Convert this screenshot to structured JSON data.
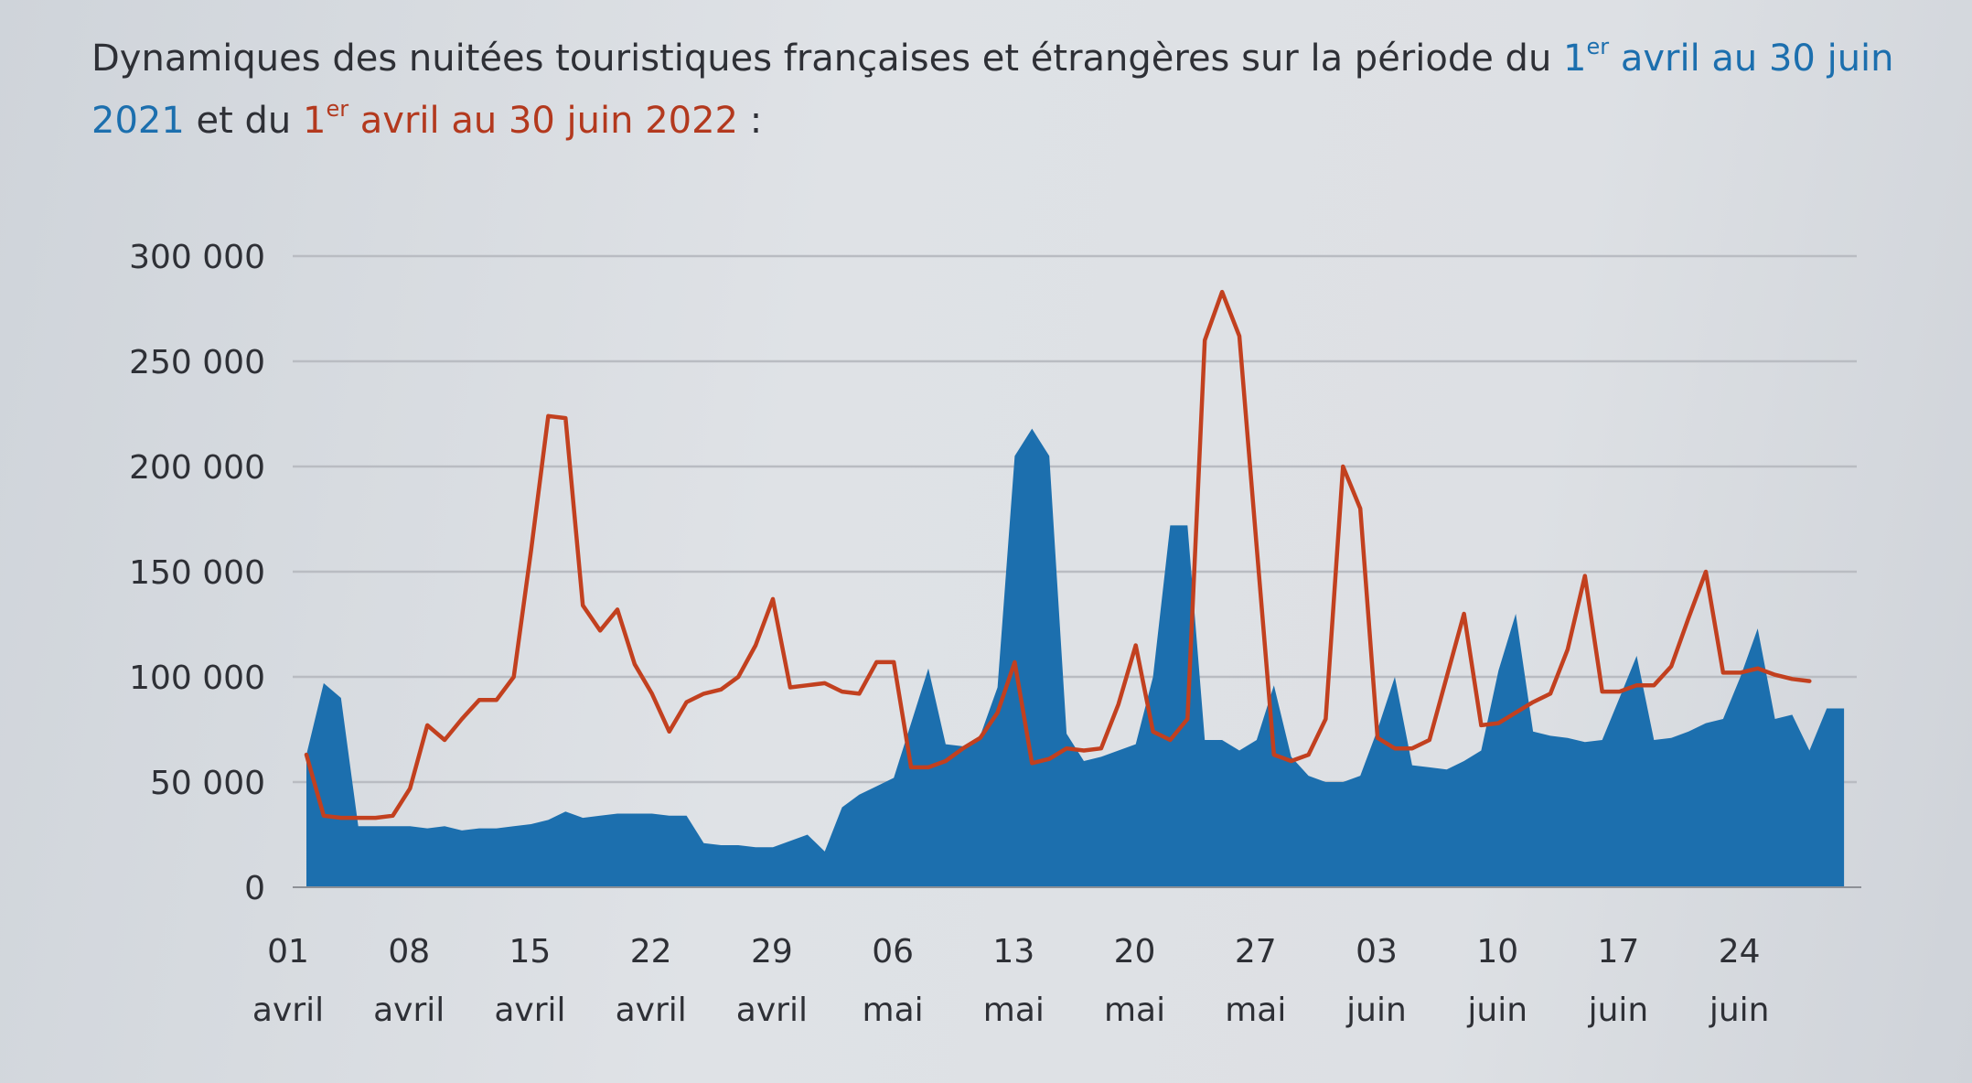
{
  "title": {
    "part1": "Dynamiques des nuitées touristiques françaises et étrangères sur la période du ",
    "part2_pre": "1",
    "part2_sup": "er",
    "part2_post": " avril au 30 juin 2021",
    "part3": " et du ",
    "part4_pre": "1",
    "part4_sup": "er",
    "part4_post": " avril au 30 juin 2022",
    "part5": " :"
  },
  "colors": {
    "series_2021": "#1c6fae",
    "series_2022": "#c2401f",
    "grid": "#b9bcc2",
    "axis": "#8d9096"
  },
  "chart_data": {
    "type": "area",
    "ylim": [
      0,
      300000
    ],
    "yticks": [
      {
        "value": 0,
        "label": "0"
      },
      {
        "value": 50000,
        "label": "50 000"
      },
      {
        "value": 100000,
        "label": "100 000"
      },
      {
        "value": 150000,
        "label": "150 000"
      },
      {
        "value": 200000,
        "label": "200 000"
      },
      {
        "value": 250000,
        "label": "250 000"
      },
      {
        "value": 300000,
        "label": "300 000"
      }
    ],
    "xticks": [
      {
        "day": 1,
        "top": "01",
        "bottom": "avril"
      },
      {
        "day": 8,
        "top": "08",
        "bottom": "avril"
      },
      {
        "day": 15,
        "top": "15",
        "bottom": "avril"
      },
      {
        "day": 22,
        "top": "22",
        "bottom": "avril"
      },
      {
        "day": 29,
        "top": "29",
        "bottom": "avril"
      },
      {
        "day": 36,
        "top": "06",
        "bottom": "mai"
      },
      {
        "day": 43,
        "top": "13",
        "bottom": "mai"
      },
      {
        "day": 50,
        "top": "20",
        "bottom": "mai"
      },
      {
        "day": 57,
        "top": "27",
        "bottom": "mai"
      },
      {
        "day": 64,
        "top": "03",
        "bottom": "juin"
      },
      {
        "day": 71,
        "top": "10",
        "bottom": "juin"
      },
      {
        "day": 78,
        "top": "17",
        "bottom": "juin"
      },
      {
        "day": 85,
        "top": "24",
        "bottom": "juin"
      }
    ],
    "x_day_range": [
      1,
      91
    ],
    "series": [
      {
        "name": "2021",
        "kind": "area",
        "points": [
          [
            1,
            63000
          ],
          [
            2,
            97000
          ],
          [
            3,
            90000
          ],
          [
            4,
            29000
          ],
          [
            5,
            29000
          ],
          [
            6,
            29000
          ],
          [
            7,
            29000
          ],
          [
            8,
            28000
          ],
          [
            9,
            29000
          ],
          [
            10,
            27000
          ],
          [
            11,
            28000
          ],
          [
            12,
            28000
          ],
          [
            13,
            29000
          ],
          [
            14,
            30000
          ],
          [
            15,
            32000
          ],
          [
            16,
            36000
          ],
          [
            17,
            33000
          ],
          [
            18,
            34000
          ],
          [
            19,
            35000
          ],
          [
            20,
            35000
          ],
          [
            21,
            35000
          ],
          [
            22,
            34000
          ],
          [
            23,
            34000
          ],
          [
            24,
            21000
          ],
          [
            25,
            20000
          ],
          [
            26,
            20000
          ],
          [
            27,
            19000
          ],
          [
            28,
            19000
          ],
          [
            29,
            22000
          ],
          [
            30,
            25000
          ],
          [
            31,
            17000
          ],
          [
            32,
            38000
          ],
          [
            33,
            44000
          ],
          [
            34,
            48000
          ],
          [
            35,
            52000
          ],
          [
            36,
            78000
          ],
          [
            37,
            104000
          ],
          [
            38,
            68000
          ],
          [
            39,
            67000
          ],
          [
            40,
            72000
          ],
          [
            41,
            95000
          ],
          [
            42,
            205000
          ],
          [
            43,
            218000
          ],
          [
            44,
            205000
          ],
          [
            45,
            73000
          ],
          [
            46,
            60000
          ],
          [
            47,
            62000
          ],
          [
            48,
            65000
          ],
          [
            49,
            68000
          ],
          [
            50,
            100000
          ],
          [
            51,
            172000
          ],
          [
            52,
            172000
          ],
          [
            53,
            70000
          ],
          [
            54,
            70000
          ],
          [
            55,
            65000
          ],
          [
            56,
            70000
          ],
          [
            57,
            96000
          ],
          [
            58,
            62000
          ],
          [
            59,
            53000
          ],
          [
            60,
            50000
          ],
          [
            61,
            50000
          ],
          [
            62,
            53000
          ],
          [
            63,
            75000
          ],
          [
            64,
            100000
          ],
          [
            65,
            58000
          ],
          [
            66,
            57000
          ],
          [
            67,
            56000
          ],
          [
            68,
            60000
          ],
          [
            69,
            65000
          ],
          [
            70,
            103000
          ],
          [
            71,
            130000
          ],
          [
            72,
            74000
          ],
          [
            73,
            72000
          ],
          [
            74,
            71000
          ],
          [
            75,
            69000
          ],
          [
            76,
            70000
          ],
          [
            77,
            90000
          ],
          [
            78,
            110000
          ],
          [
            79,
            70000
          ],
          [
            80,
            71000
          ],
          [
            81,
            74000
          ],
          [
            82,
            78000
          ],
          [
            83,
            80000
          ],
          [
            84,
            100000
          ],
          [
            85,
            123000
          ],
          [
            86,
            80000
          ],
          [
            87,
            82000
          ],
          [
            88,
            65000
          ],
          [
            89,
            85000
          ],
          [
            90,
            85000
          ]
        ]
      },
      {
        "name": "2022",
        "kind": "line",
        "points": [
          [
            1,
            63000
          ],
          [
            2,
            34000
          ],
          [
            3,
            33000
          ],
          [
            4,
            33000
          ],
          [
            5,
            33000
          ],
          [
            6,
            34000
          ],
          [
            7,
            47000
          ],
          [
            8,
            77000
          ],
          [
            9,
            70000
          ],
          [
            10,
            80000
          ],
          [
            11,
            89000
          ],
          [
            12,
            89000
          ],
          [
            13,
            100000
          ],
          [
            14,
            160000
          ],
          [
            15,
            224000
          ],
          [
            16,
            223000
          ],
          [
            17,
            134000
          ],
          [
            18,
            122000
          ],
          [
            19,
            132000
          ],
          [
            20,
            106000
          ],
          [
            21,
            92000
          ],
          [
            22,
            74000
          ],
          [
            23,
            88000
          ],
          [
            24,
            92000
          ],
          [
            25,
            94000
          ],
          [
            26,
            100000
          ],
          [
            27,
            115000
          ],
          [
            28,
            137000
          ],
          [
            29,
            95000
          ],
          [
            30,
            96000
          ],
          [
            31,
            97000
          ],
          [
            32,
            93000
          ],
          [
            33,
            92000
          ],
          [
            34,
            107000
          ],
          [
            35,
            107000
          ],
          [
            36,
            57000
          ],
          [
            37,
            57000
          ],
          [
            38,
            60000
          ],
          [
            39,
            66000
          ],
          [
            40,
            71000
          ],
          [
            41,
            83000
          ],
          [
            42,
            107000
          ],
          [
            43,
            59000
          ],
          [
            44,
            61000
          ],
          [
            45,
            66000
          ],
          [
            46,
            65000
          ],
          [
            47,
            66000
          ],
          [
            48,
            87000
          ],
          [
            49,
            115000
          ],
          [
            50,
            74000
          ],
          [
            51,
            70000
          ],
          [
            52,
            80000
          ],
          [
            53,
            260000
          ],
          [
            54,
            283000
          ],
          [
            55,
            262000
          ],
          [
            56,
            162000
          ],
          [
            57,
            63000
          ],
          [
            58,
            60000
          ],
          [
            59,
            63000
          ],
          [
            60,
            80000
          ],
          [
            61,
            200000
          ],
          [
            62,
            180000
          ],
          [
            63,
            71000
          ],
          [
            64,
            66000
          ],
          [
            65,
            66000
          ],
          [
            66,
            70000
          ],
          [
            67,
            100000
          ],
          [
            68,
            130000
          ],
          [
            69,
            77000
          ],
          [
            70,
            78000
          ],
          [
            71,
            83000
          ],
          [
            72,
            88000
          ],
          [
            73,
            92000
          ],
          [
            74,
            113000
          ],
          [
            75,
            148000
          ],
          [
            76,
            93000
          ],
          [
            77,
            93000
          ],
          [
            78,
            96000
          ],
          [
            79,
            96000
          ],
          [
            80,
            105000
          ],
          [
            81,
            128000
          ],
          [
            82,
            150000
          ],
          [
            83,
            102000
          ],
          [
            84,
            102000
          ],
          [
            85,
            104000
          ],
          [
            86,
            101000
          ],
          [
            87,
            99000
          ],
          [
            88,
            98000
          ]
        ]
      }
    ]
  }
}
